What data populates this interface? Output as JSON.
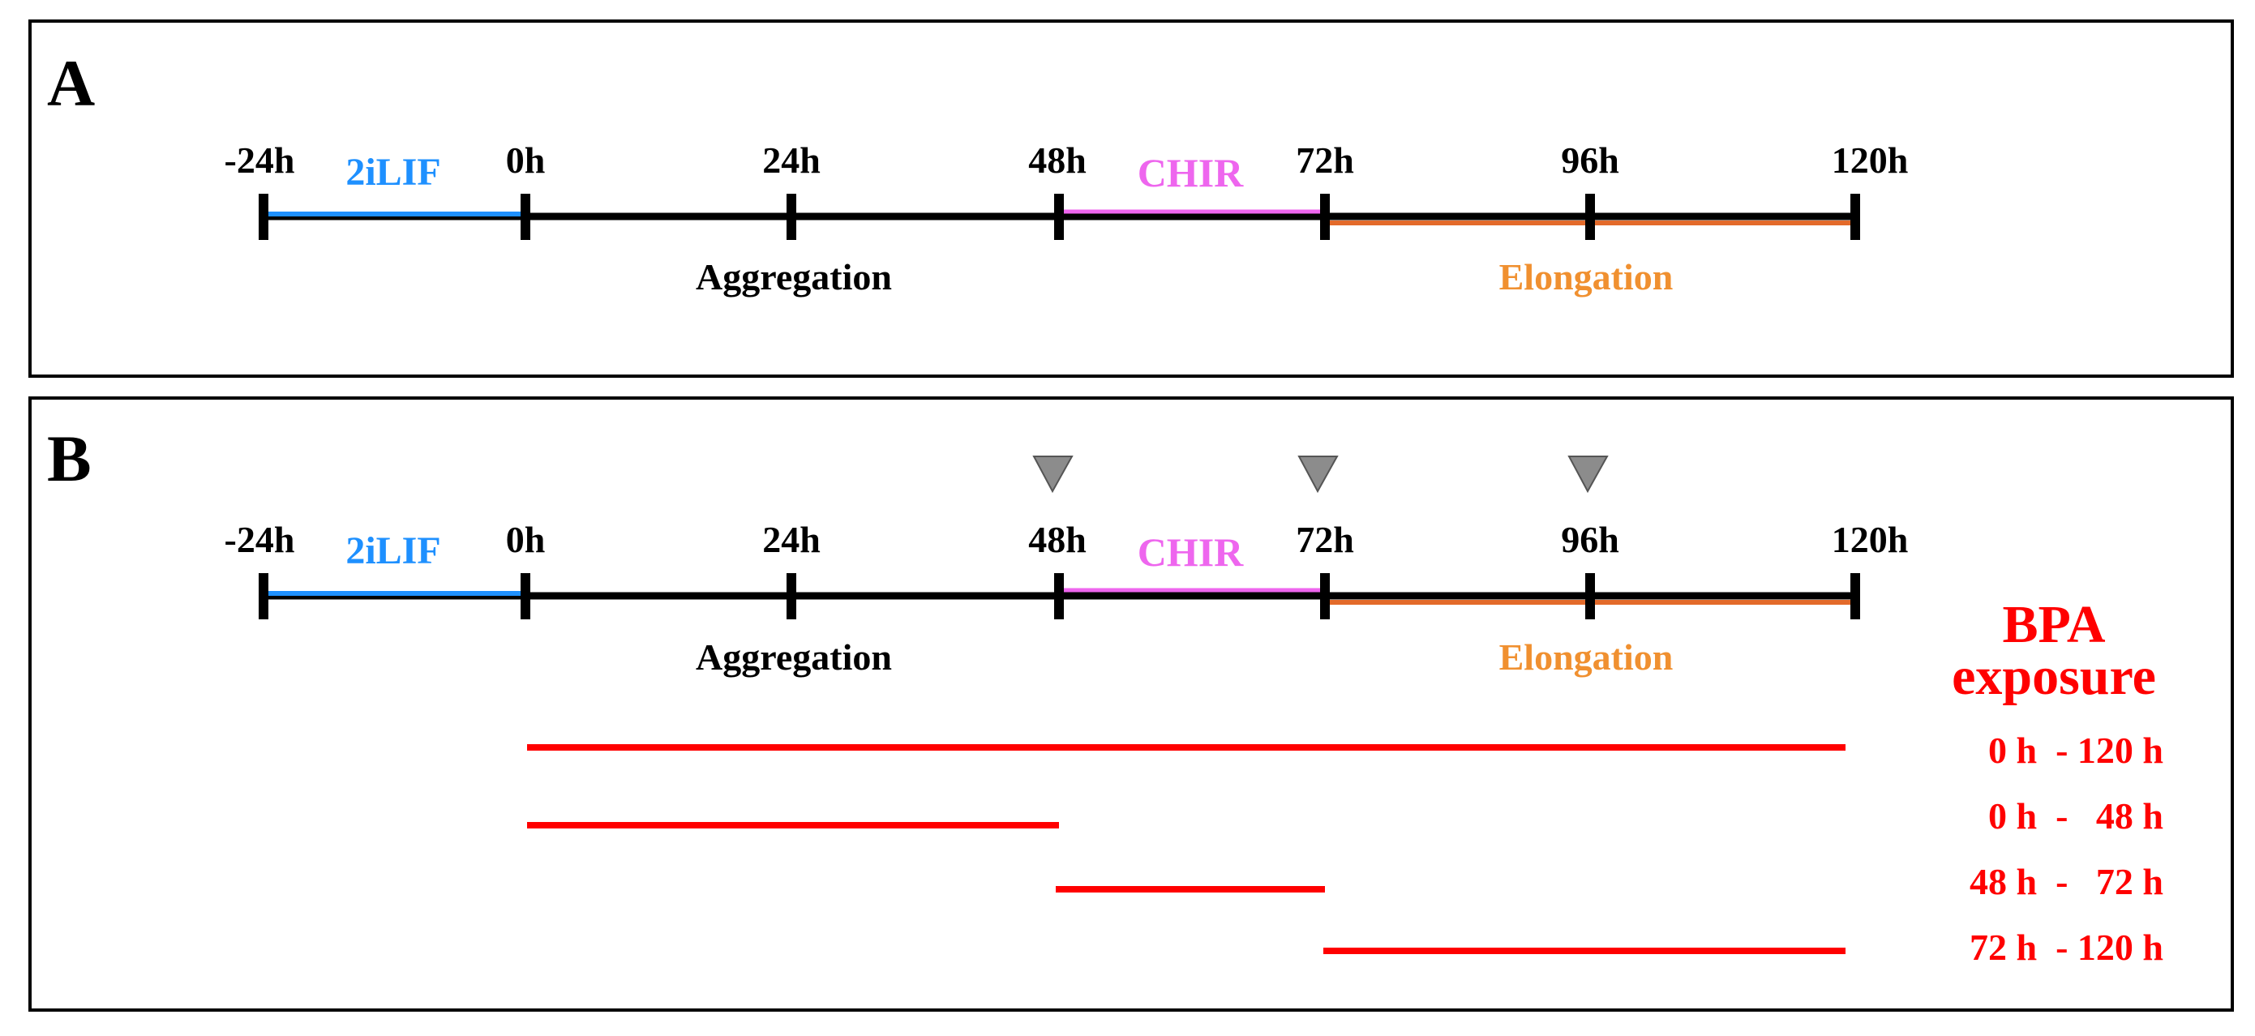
{
  "panel_a": {
    "letter": "A",
    "ticks": [
      "-24h",
      "0h",
      "24h",
      "48h",
      "72h",
      "96h",
      "120h"
    ],
    "segment_labels": {
      "twoilif": "2iLIF",
      "chir": "CHIR"
    },
    "phase_labels": {
      "aggregation": "Aggregation",
      "elongation": "Elongation"
    }
  },
  "panel_b": {
    "letter": "B",
    "ticks": [
      "-24h",
      "0h",
      "24h",
      "48h",
      "72h",
      "96h",
      "120h"
    ],
    "segment_labels": {
      "twoilif": "2iLIF",
      "chir": "CHIR"
    },
    "phase_labels": {
      "aggregation": "Aggregation",
      "elongation": "Elongation"
    },
    "markers_at_hours": [
      48,
      72,
      96
    ],
    "bpa": {
      "title_line1": "BPA",
      "title_line2": "exposure",
      "exposures": [
        {
          "label": "0 h  - 120 h",
          "start": 0,
          "end": 120
        },
        {
          "label": "0 h  -   48 h",
          "start": 0,
          "end": 48
        },
        {
          "label": "48 h  -   72 h",
          "start": 48,
          "end": 72
        },
        {
          "label": "72 h  - 120 h",
          "start": 72,
          "end": 120
        }
      ]
    }
  },
  "colors": {
    "twoilif": "#1e90ff",
    "chir": "#ee66ee",
    "elongation": "#f09030",
    "elongation_line": "#e36a2a",
    "bpa": "#ff0000",
    "marker": "#8c8c8c",
    "axis": "#000000"
  }
}
